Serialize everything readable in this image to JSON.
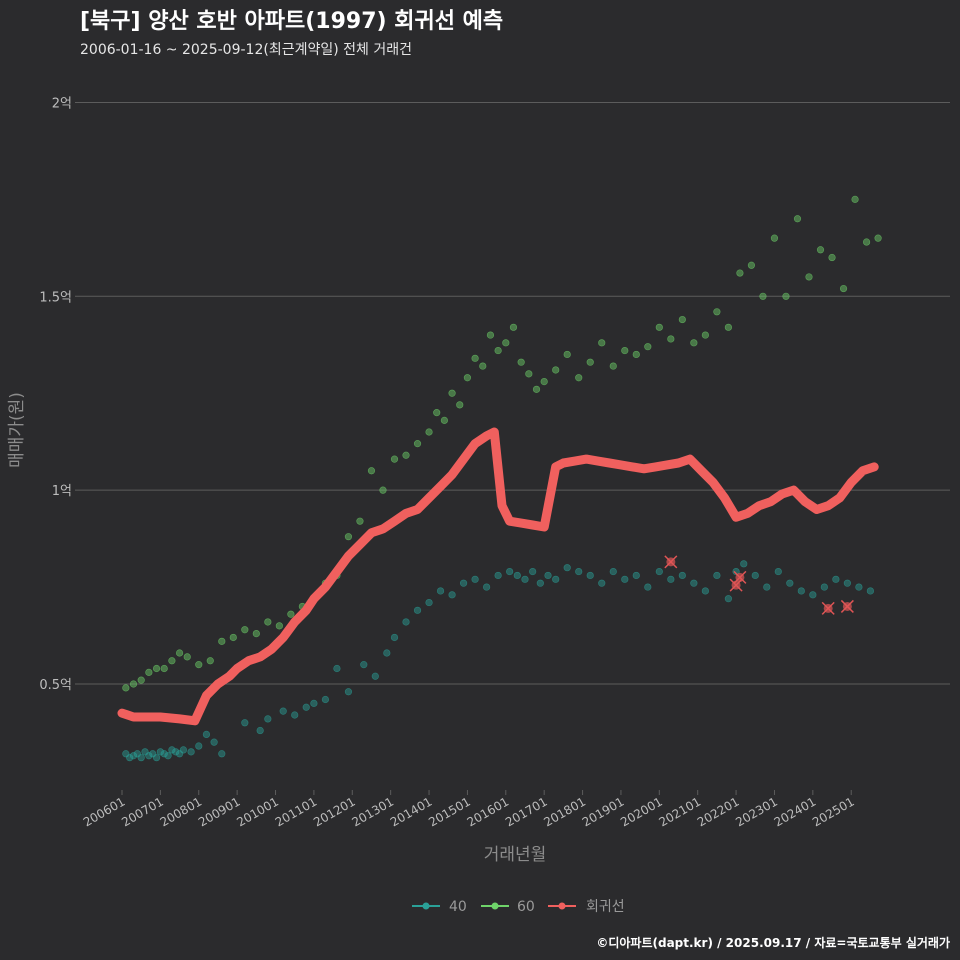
{
  "chart_data": {
    "type": "scatter",
    "title": "[북구] 양산 호반 아파트(1997) 회귀선 예측",
    "subtitle": "2006-01-16 ~ 2025-09-12(최근계약일) 전체 거래건",
    "xlabel": "거래년월",
    "ylabel": "매매가(원)",
    "caption": "©디아파트(dapt.kr) / 2025.09.17 / 자료=국토교통부 실거래가",
    "xlim": [
      2005.9,
      2026.1
    ],
    "ylim": [
      22000,
      21200
    ],
    "yticks": [
      {
        "value": 5000,
        "label": "0.5억"
      },
      {
        "value": 10000,
        "label": "1억"
      },
      {
        "value": 15000,
        "label": "1.5억"
      },
      {
        "value": 20000,
        "label": "2억"
      }
    ],
    "xticks": [
      {
        "value": 2006.0,
        "label": "200601"
      },
      {
        "value": 2007.0,
        "label": "200701"
      },
      {
        "value": 2008.0,
        "label": "200801"
      },
      {
        "value": 2009.0,
        "label": "200901"
      },
      {
        "value": 2010.0,
        "label": "201001"
      },
      {
        "value": 2011.0,
        "label": "201101"
      },
      {
        "value": 2012.0,
        "label": "201201"
      },
      {
        "value": 2013.0,
        "label": "201301"
      },
      {
        "value": 2014.0,
        "label": "201401"
      },
      {
        "value": 2015.0,
        "label": "201501"
      },
      {
        "value": 2016.0,
        "label": "201601"
      },
      {
        "value": 2017.0,
        "label": "201701"
      },
      {
        "value": 2018.0,
        "label": "201801"
      },
      {
        "value": 2019.0,
        "label": "201901"
      },
      {
        "value": 2020.0,
        "label": "202001"
      },
      {
        "value": 2021.0,
        "label": "202101"
      },
      {
        "value": 2022.0,
        "label": "202201"
      },
      {
        "value": 2023.0,
        "label": "202301"
      },
      {
        "value": 2024.0,
        "label": "202401"
      },
      {
        "value": 2025.0,
        "label": "202501"
      }
    ],
    "legend_position": "bottom",
    "series": [
      {
        "name": "40",
        "kind": "points",
        "color": "#2aa198",
        "x": [
          2006.1,
          2006.2,
          2006.3,
          2006.4,
          2006.5,
          2006.6,
          2006.7,
          2006.8,
          2006.9,
          2007.0,
          2007.1,
          2007.2,
          2007.3,
          2007.4,
          2007.5,
          2007.6,
          2007.8,
          2008.0,
          2008.2,
          2008.4,
          2008.6,
          2009.2,
          2009.6,
          2009.8,
          2010.2,
          2010.5,
          2010.8,
          2011.0,
          2011.3,
          2011.6,
          2011.9,
          2012.3,
          2012.6,
          2012.9,
          2013.1,
          2013.4,
          2013.7,
          2014.0,
          2014.3,
          2014.6,
          2014.9,
          2015.2,
          2015.5,
          2015.8,
          2016.1,
          2016.3,
          2016.5,
          2016.7,
          2016.9,
          2017.1,
          2017.3,
          2017.6,
          2017.9,
          2018.2,
          2018.5,
          2018.8,
          2019.1,
          2019.4,
          2019.7,
          2020.0,
          2020.3,
          2020.6,
          2020.9,
          2021.2,
          2021.5,
          2021.8,
          2022.0,
          2022.2,
          2022.5,
          2022.8,
          2023.1,
          2023.4,
          2023.7,
          2024.0,
          2024.3,
          2024.6,
          2024.9,
          2025.2,
          2025.5
        ],
        "y": [
          3200,
          3100,
          3150,
          3200,
          3100,
          3250,
          3150,
          3200,
          3100,
          3250,
          3200,
          3150,
          3300,
          3250,
          3200,
          3300,
          3250,
          3400,
          3700,
          3500,
          3200,
          4000,
          3800,
          4100,
          4300,
          4200,
          4400,
          4500,
          4600,
          5400,
          4800,
          5500,
          5200,
          5800,
          6200,
          6600,
          6900,
          7100,
          7400,
          7300,
          7600,
          7700,
          7500,
          7800,
          7900,
          7800,
          7700,
          7900,
          7600,
          7800,
          7700,
          8000,
          7900,
          7800,
          7600,
          7900,
          7700,
          7800,
          7500,
          7900,
          7700,
          7800,
          7600,
          7400,
          7800,
          7200,
          7900,
          8100,
          7800,
          7500,
          7900,
          7600,
          7400,
          7300,
          7500,
          7700,
          7600,
          7500,
          7400
        ]
      },
      {
        "name": "60",
        "kind": "points",
        "color": "#6fd46a",
        "x": [
          2006.1,
          2006.3,
          2006.5,
          2006.7,
          2006.9,
          2007.1,
          2007.3,
          2007.5,
          2007.7,
          2008.0,
          2008.3,
          2008.6,
          2008.9,
          2009.2,
          2009.5,
          2009.8,
          2010.1,
          2010.4,
          2010.7,
          2011.0,
          2011.3,
          2011.6,
          2011.9,
          2012.2,
          2012.5,
          2012.8,
          2013.1,
          2013.4,
          2013.7,
          2014.0,
          2014.2,
          2014.4,
          2014.6,
          2014.8,
          2015.0,
          2015.2,
          2015.4,
          2015.6,
          2015.8,
          2016.0,
          2016.2,
          2016.4,
          2016.6,
          2016.8,
          2017.0,
          2017.3,
          2017.6,
          2017.9,
          2018.2,
          2018.5,
          2018.8,
          2019.1,
          2019.4,
          2019.7,
          2020.0,
          2020.3,
          2020.6,
          2020.9,
          2021.2,
          2021.5,
          2021.8,
          2022.1,
          2022.4,
          2022.7,
          2023.0,
          2023.3,
          2023.6,
          2023.9,
          2024.2,
          2024.5,
          2024.8,
          2025.1,
          2025.4,
          2025.7
        ],
        "y": [
          4900,
          5000,
          5100,
          5300,
          5400,
          5400,
          5600,
          5800,
          5700,
          5500,
          5600,
          6100,
          6200,
          6400,
          6300,
          6600,
          6500,
          6800,
          7000,
          7200,
          7600,
          7800,
          8800,
          9200,
          10500,
          10000,
          10800,
          10900,
          11200,
          11500,
          12000,
          11800,
          12500,
          12200,
          12900,
          13400,
          13200,
          14000,
          13600,
          13800,
          14200,
          13300,
          13000,
          12600,
          12800,
          13100,
          13500,
          12900,
          13300,
          13800,
          13200,
          13600,
          13500,
          13700,
          14200,
          13900,
          14400,
          13800,
          14000,
          14600,
          14200,
          15600,
          15800,
          15000,
          16500,
          15000,
          17000,
          15500,
          16200,
          16000,
          15200,
          17500,
          16400,
          16500
        ]
      },
      {
        "name": "회귀선",
        "kind": "line",
        "color": "#f0605e",
        "x": [
          2006.0,
          2006.3,
          2006.6,
          2007.0,
          2007.5,
          2007.9,
          2008.2,
          2008.5,
          2008.8,
          2009.0,
          2009.3,
          2009.6,
          2009.9,
          2010.2,
          2010.5,
          2010.8,
          2011.0,
          2011.3,
          2011.6,
          2011.9,
          2012.2,
          2012.5,
          2012.8,
          2013.1,
          2013.4,
          2013.7,
          2014.0,
          2014.3,
          2014.6,
          2014.9,
          2015.2,
          2015.5,
          2015.7,
          2015.9,
          2016.1,
          2016.4,
          2016.7,
          2017.0,
          2017.3,
          2017.5,
          2017.8,
          2018.1,
          2018.4,
          2018.7,
          2019.0,
          2019.3,
          2019.6,
          2019.9,
          2020.2,
          2020.5,
          2020.8,
          2021.1,
          2021.4,
          2021.7,
          2022.0,
          2022.3,
          2022.6,
          2022.9,
          2023.2,
          2023.5,
          2023.8,
          2024.1,
          2024.4,
          2024.7,
          2025.0,
          2025.3,
          2025.6
        ],
        "y": [
          4250,
          4150,
          4150,
          4150,
          4100,
          4050,
          4700,
          5000,
          5200,
          5400,
          5600,
          5700,
          5900,
          6200,
          6600,
          6900,
          7200,
          7500,
          7900,
          8300,
          8600,
          8900,
          9000,
          9200,
          9400,
          9500,
          9800,
          10100,
          10400,
          10800,
          11200,
          11400,
          11500,
          9600,
          9200,
          9150,
          9100,
          9050,
          10600,
          10700,
          10750,
          10800,
          10750,
          10700,
          10650,
          10600,
          10550,
          10600,
          10650,
          10700,
          10800,
          10500,
          10200,
          9800,
          9300,
          9400,
          9600,
          9700,
          9900,
          10000,
          9700,
          9500,
          9600,
          9800,
          10200,
          10500,
          10600
        ]
      }
    ],
    "highlights": {
      "color": "#e05555",
      "x": [
        2020.3,
        2022.0,
        2022.1,
        2024.4,
        2024.9
      ],
      "y": [
        8150,
        7550,
        7750,
        6950,
        7000
      ]
    }
  },
  "legend": {
    "items": [
      {
        "label": "40",
        "color": "#2aa198"
      },
      {
        "label": "60",
        "color": "#6fd46a"
      },
      {
        "label": "회귀선",
        "color": "#f0605e"
      }
    ]
  }
}
